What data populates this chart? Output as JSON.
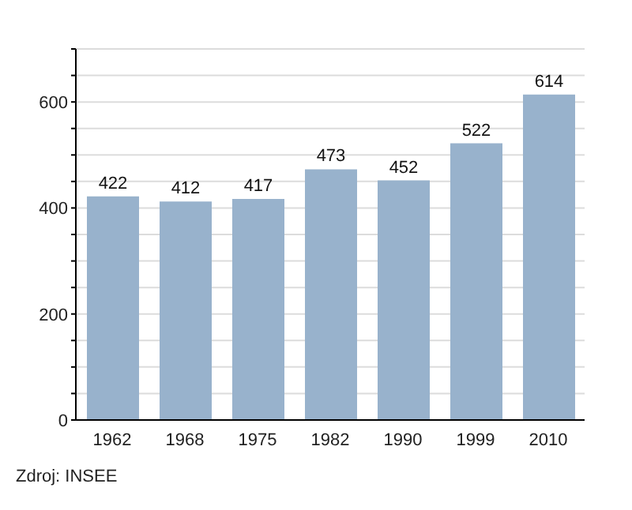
{
  "chart_data": {
    "type": "bar",
    "categories": [
      "1962",
      "1968",
      "1975",
      "1982",
      "1990",
      "1999",
      "2010"
    ],
    "values": [
      422,
      412,
      417,
      473,
      452,
      522,
      614
    ],
    "color": "#98b2cc",
    "data_labels": true,
    "ylim": [
      0,
      700
    ],
    "yticks": [
      0,
      {
        "value": 50,
        "label": null
      },
      {
        "value": 100,
        "label": null
      },
      {
        "value": 150,
        "label": null
      },
      200,
      {
        "value": 250,
        "label": null
      },
      {
        "value": 300,
        "label": null
      },
      {
        "value": 350,
        "label": null
      },
      400,
      {
        "value": 450,
        "label": null
      },
      {
        "value": 500,
        "label": null
      },
      {
        "value": 550,
        "label": null
      },
      600,
      {
        "value": 650,
        "label": null
      },
      {
        "value": 700,
        "label": null
      }
    ],
    "grid": true,
    "annotations": [
      "Zdroj: INSEE"
    ]
  }
}
